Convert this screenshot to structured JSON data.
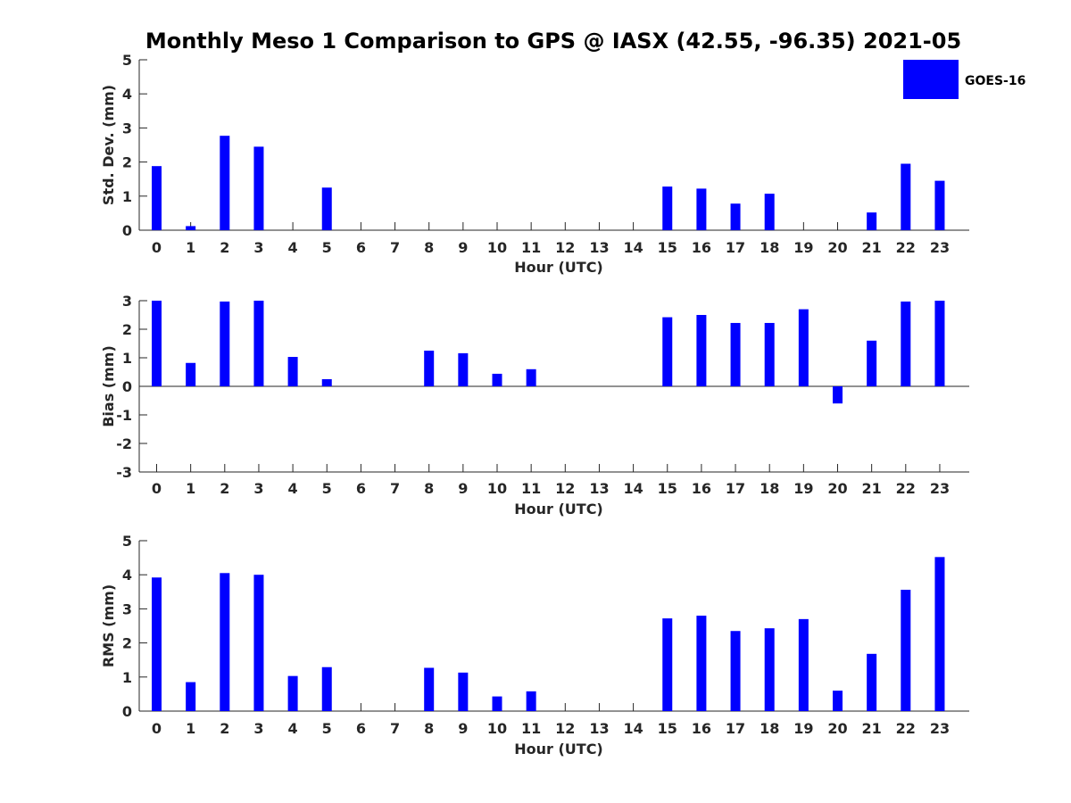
{
  "figure": {
    "title": "Monthly Meso 1 Comparison to GPS @ IASX (42.55, -96.35) 2021-05",
    "legend": {
      "label": "GOES-16",
      "color": "#0000ff"
    },
    "bar_color": "#0000ff"
  },
  "chart_data": [
    {
      "type": "bar",
      "title": "",
      "xlabel": "Hour (UTC)",
      "ylabel": "Std. Dev. (mm)",
      "categories": [
        "0",
        "1",
        "2",
        "3",
        "4",
        "5",
        "6",
        "7",
        "8",
        "9",
        "10",
        "11",
        "12",
        "13",
        "14",
        "15",
        "16",
        "17",
        "18",
        "19",
        "20",
        "21",
        "22",
        "23"
      ],
      "values": [
        1.88,
        0.12,
        2.77,
        2.45,
        null,
        1.25,
        null,
        null,
        null,
        null,
        null,
        null,
        null,
        null,
        null,
        1.28,
        1.22,
        0.78,
        1.07,
        null,
        null,
        0.52,
        1.95,
        1.45
      ],
      "ylim": [
        0,
        5
      ],
      "yticks": [
        "0",
        "1",
        "2",
        "3",
        "4",
        "5"
      ],
      "legend": "top-right",
      "grid": false
    },
    {
      "type": "bar",
      "title": "",
      "xlabel": "Hour (UTC)",
      "ylabel": "Bias (mm)",
      "categories": [
        "0",
        "1",
        "2",
        "3",
        "4",
        "5",
        "6",
        "7",
        "8",
        "9",
        "10",
        "11",
        "12",
        "13",
        "14",
        "15",
        "16",
        "17",
        "18",
        "19",
        "20",
        "21",
        "22",
        "23"
      ],
      "values": [
        3.0,
        0.82,
        2.97,
        3.0,
        1.03,
        0.25,
        null,
        null,
        1.25,
        1.16,
        0.44,
        0.6,
        null,
        null,
        null,
        2.42,
        2.5,
        2.22,
        2.22,
        2.7,
        -0.6,
        1.6,
        2.97,
        3.0
      ],
      "ylim": [
        -3,
        3
      ],
      "yticks": [
        "-3",
        "-2",
        "-1",
        "0",
        "1",
        "2",
        "3"
      ],
      "grid": false
    },
    {
      "type": "bar",
      "title": "",
      "xlabel": "Hour (UTC)",
      "ylabel": "RMS (mm)",
      "categories": [
        "0",
        "1",
        "2",
        "3",
        "4",
        "5",
        "6",
        "7",
        "8",
        "9",
        "10",
        "11",
        "12",
        "13",
        "14",
        "15",
        "16",
        "17",
        "18",
        "19",
        "20",
        "21",
        "22",
        "23"
      ],
      "values": [
        3.92,
        0.85,
        4.05,
        4.0,
        1.03,
        1.29,
        null,
        null,
        1.27,
        1.13,
        0.43,
        0.58,
        null,
        null,
        null,
        2.72,
        2.8,
        2.35,
        2.43,
        2.7,
        0.6,
        1.68,
        3.56,
        4.52
      ],
      "ylim": [
        0,
        5
      ],
      "yticks": [
        "0",
        "1",
        "2",
        "3",
        "4",
        "5"
      ],
      "grid": false
    }
  ]
}
